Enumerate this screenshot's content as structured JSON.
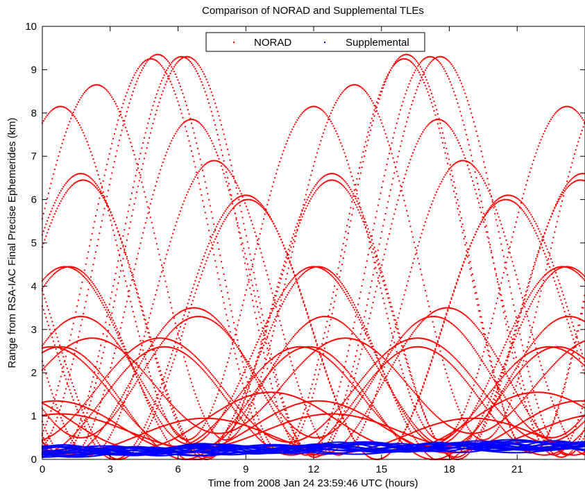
{
  "chart_data": {
    "type": "scatter",
    "title": "Comparison of NORAD and Supplemental TLEs",
    "xlabel": "Time from 2008 Jan 24 23:59:46 UTC (hours)",
    "ylabel": "Range from RSA-IAC Final Precise Ephemerides (km)",
    "xlim": [
      0,
      24
    ],
    "ylim": [
      0,
      10
    ],
    "xticks": [
      0,
      3,
      6,
      9,
      12,
      15,
      18,
      21
    ],
    "yticks": [
      0,
      1,
      2,
      3,
      4,
      5,
      6,
      7,
      8,
      9,
      10
    ],
    "grid": false,
    "legend": {
      "position": "top-center",
      "orientation": "horizontal",
      "entries": [
        "NORAD",
        "Supplemental"
      ]
    },
    "series": [
      {
        "name": "NORAD",
        "color": "#ff0000",
        "marker": "dot",
        "curves": [
          {
            "mean": 4.3,
            "amp": 3.85,
            "period": 11.2,
            "phase": 0.8
          },
          {
            "mean": 4.55,
            "amp": 4.1,
            "period": 11.4,
            "phase": 2.4
          },
          {
            "mean": 4.7,
            "amp": 4.55,
            "period": 11.2,
            "phase": 4.8
          },
          {
            "mean": 4.7,
            "amp": 4.6,
            "period": 11.0,
            "phase": 6.15
          },
          {
            "mean": 4.75,
            "amp": 4.6,
            "period": 11.0,
            "phase": 16.1
          },
          {
            "mean": 4.7,
            "amp": 4.6,
            "period": 11.2,
            "phase": 17.6
          },
          {
            "mean": 3.95,
            "amp": 3.9,
            "period": 10.9,
            "phase": 6.6
          },
          {
            "mean": 3.5,
            "amp": 3.4,
            "period": 11.0,
            "phase": 7.6
          },
          {
            "mean": 3.3,
            "amp": 3.3,
            "period": 11.1,
            "phase": 1.7
          },
          {
            "mean": 3.25,
            "amp": 3.2,
            "period": 11.0,
            "phase": 12.8
          },
          {
            "mean": 3.05,
            "amp": 3.05,
            "period": 11.6,
            "phase": 9.0
          },
          {
            "mean": 3.0,
            "amp": 3.0,
            "period": 11.4,
            "phase": 20.5
          },
          {
            "mean": 2.4,
            "amp": 2.05,
            "period": 11.0,
            "phase": 1.0
          },
          {
            "mean": 2.2,
            "amp": 2.25,
            "period": 11.0,
            "phase": 12.2
          },
          {
            "mean": 1.8,
            "amp": 1.7,
            "period": 11.2,
            "phase": 17.9
          },
          {
            "mean": 1.9,
            "amp": 1.4,
            "period": 10.4,
            "phase": 6.9
          },
          {
            "mean": 1.8,
            "amp": 1.5,
            "period": 10.8,
            "phase": 1.7
          },
          {
            "mean": 1.7,
            "amp": 1.1,
            "period": 11.2,
            "phase": 13.4
          },
          {
            "mean": 1.6,
            "amp": 1.2,
            "period": 11.4,
            "phase": 5.2
          },
          {
            "mean": 1.45,
            "amp": 1.15,
            "period": 11.0,
            "phase": 11.4
          },
          {
            "mean": 1.35,
            "amp": 1.25,
            "period": 11.2,
            "phase": 16.6
          },
          {
            "mean": 1.3,
            "amp": 1.3,
            "period": 11.0,
            "phase": 22.8
          },
          {
            "mean": 0.9,
            "amp": 0.65,
            "period": 11.8,
            "phase": 21.9
          },
          {
            "mean": 0.75,
            "amp": 0.6,
            "period": 11.6,
            "phase": 12.2
          },
          {
            "mean": 0.65,
            "amp": 0.4,
            "period": 12.0,
            "phase": 0.8
          },
          {
            "mean": 0.55,
            "amp": 0.4,
            "period": 11.8,
            "phase": 7.2
          }
        ]
      },
      {
        "name": "Supplemental",
        "color": "#0000ff",
        "marker": "dot",
        "curves": [
          {
            "mean": 0.18,
            "amp": 0.1,
            "period": 6.0,
            "phase": 0.5,
            "trend": 0.006
          },
          {
            "mean": 0.15,
            "amp": 0.08,
            "period": 5.5,
            "phase": 2.0,
            "trend": 0.007
          },
          {
            "mean": 0.12,
            "amp": 0.07,
            "period": 7.0,
            "phase": 3.5,
            "trend": 0.005
          },
          {
            "mean": 0.2,
            "amp": 0.09,
            "period": 6.5,
            "phase": 1.2,
            "trend": 0.008
          },
          {
            "mean": 0.16,
            "amp": 0.11,
            "period": 5.8,
            "phase": 4.1,
            "trend": 0.006
          },
          {
            "mean": 0.14,
            "amp": 0.06,
            "period": 6.2,
            "phase": 0.1,
            "trend": 0.009
          },
          {
            "mean": 0.22,
            "amp": 0.08,
            "period": 7.4,
            "phase": 2.7,
            "trend": 0.004
          },
          {
            "mean": 0.17,
            "amp": 0.1,
            "period": 5.2,
            "phase": 1.8,
            "trend": 0.007
          },
          {
            "mean": 0.13,
            "amp": 0.09,
            "period": 6.8,
            "phase": 5.0,
            "trend": 0.008
          },
          {
            "mean": 0.19,
            "amp": 0.07,
            "period": 5.6,
            "phase": 3.1,
            "trend": 0.006
          },
          {
            "mean": 0.21,
            "amp": 0.12,
            "period": 6.1,
            "phase": 0.9,
            "trend": 0.005
          },
          {
            "mean": 0.16,
            "amp": 0.08,
            "period": 7.1,
            "phase": 4.6,
            "trend": 0.0075
          },
          {
            "mean": 0.14,
            "amp": 0.1,
            "period": 5.9,
            "phase": 2.3,
            "trend": 0.0085
          },
          {
            "mean": 0.18,
            "amp": 0.06,
            "period": 6.6,
            "phase": 3.8,
            "trend": 0.0065
          },
          {
            "mean": 0.15,
            "amp": 0.09,
            "period": 5.4,
            "phase": 1.4,
            "trend": 0.007
          },
          {
            "mean": 0.2,
            "amp": 0.11,
            "period": 6.9,
            "phase": 0.3,
            "trend": 0.0055
          }
        ]
      }
    ]
  }
}
